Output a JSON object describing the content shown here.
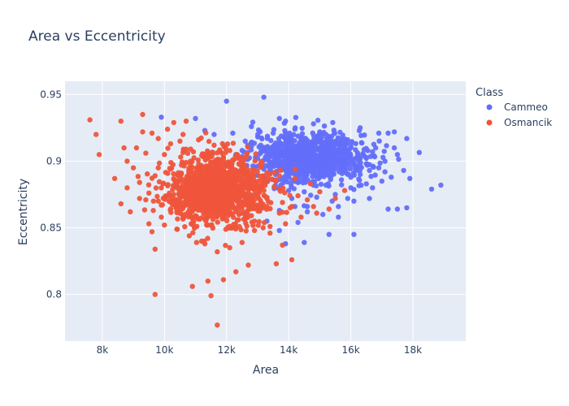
{
  "chart_data": {
    "type": "scatter",
    "title": "Area vs Eccentricity",
    "xlabel": "Area",
    "ylabel": "Eccentricity",
    "xlim": [
      6800,
      19700
    ],
    "ylim": [
      0.765,
      0.96
    ],
    "x_ticks": [
      8000,
      10000,
      12000,
      14000,
      16000,
      18000
    ],
    "x_tick_labels": [
      "8k",
      "10k",
      "12k",
      "14k",
      "16k",
      "18k"
    ],
    "y_ticks": [
      0.8,
      0.85,
      0.9,
      0.95
    ],
    "y_tick_labels": [
      "0.8",
      "0.85",
      "0.9",
      "0.95"
    ],
    "grid": true,
    "legend": {
      "title": "Class",
      "position": "right"
    },
    "series": [
      {
        "name": "Cammeo",
        "color": "#636efa",
        "points": [
          [
            13200,
            0.948
          ],
          [
            12000,
            0.945
          ],
          [
            9900,
            0.933
          ],
          [
            11000,
            0.932
          ],
          [
            13700,
            0.932
          ],
          [
            14800,
            0.928
          ],
          [
            16300,
            0.925
          ],
          [
            15000,
            0.922
          ],
          [
            17200,
            0.921
          ],
          [
            17400,
            0.922
          ],
          [
            16900,
            0.921
          ],
          [
            17800,
            0.917
          ],
          [
            17400,
            0.91
          ],
          [
            17500,
            0.905
          ],
          [
            17100,
            0.9
          ],
          [
            16700,
            0.907
          ],
          [
            17700,
            0.893
          ],
          [
            17100,
            0.892
          ],
          [
            17300,
            0.888
          ],
          [
            16600,
            0.893
          ],
          [
            17900,
            0.887
          ],
          [
            18600,
            0.879
          ],
          [
            18900,
            0.882
          ],
          [
            17800,
            0.865
          ],
          [
            17200,
            0.864
          ],
          [
            17500,
            0.864
          ],
          [
            16100,
            0.845
          ],
          [
            15900,
            0.872
          ],
          [
            15300,
            0.845
          ],
          [
            15600,
            0.858
          ],
          [
            14600,
            0.862
          ],
          [
            14300,
            0.854
          ],
          [
            13300,
            0.855
          ],
          [
            13700,
            0.848
          ],
          [
            14500,
            0.839
          ],
          [
            13900,
            0.838
          ],
          [
            13700,
            0.863
          ],
          [
            14100,
            0.872
          ],
          [
            16500,
            0.883
          ],
          [
            16300,
            0.896
          ],
          [
            16400,
            0.905
          ],
          [
            15600,
            0.908
          ],
          [
            14200,
            0.924
          ],
          [
            13500,
            0.921
          ],
          [
            13900,
            0.93
          ],
          [
            12800,
            0.926
          ],
          [
            11600,
            0.92
          ],
          [
            11300,
            0.923
          ],
          [
            12200,
            0.921
          ],
          [
            12600,
            0.915
          ],
          [
            13100,
            0.912
          ],
          [
            14000,
            0.91
          ],
          [
            14700,
            0.912
          ],
          [
            15300,
            0.914
          ],
          [
            15900,
            0.916
          ],
          [
            16800,
            0.91
          ],
          [
            15300,
            0.895
          ],
          [
            14400,
            0.891
          ],
          [
            13400,
            0.892
          ],
          [
            13000,
            0.902
          ],
          [
            12500,
            0.908
          ],
          [
            14800,
            0.882
          ],
          [
            15500,
            0.875
          ],
          [
            14600,
            0.866
          ],
          [
            14000,
            0.878
          ],
          [
            15000,
            0.888
          ],
          [
            16000,
            0.888
          ],
          [
            16700,
            0.88
          ],
          [
            13600,
            0.885
          ],
          [
            13900,
            0.897
          ],
          [
            14300,
            0.904
          ],
          [
            14700,
            0.898
          ],
          [
            15100,
            0.902
          ],
          [
            15500,
            0.907
          ],
          [
            14100,
            0.915
          ],
          [
            14800,
            0.909
          ],
          [
            13700,
            0.908
          ],
          [
            14400,
            0.918
          ],
          [
            15200,
            0.92
          ],
          [
            15800,
            0.911
          ],
          [
            16200,
            0.903
          ],
          [
            15700,
            0.894
          ],
          [
            15200,
            0.882
          ],
          [
            14200,
            0.866
          ],
          [
            14500,
            0.877
          ],
          [
            13900,
            0.889
          ],
          [
            13500,
            0.899
          ],
          [
            13200,
            0.894
          ],
          [
            12900,
            0.889
          ],
          [
            13300,
            0.905
          ],
          [
            13700,
            0.914
          ],
          [
            14000,
            0.903
          ],
          [
            14200,
            0.896
          ],
          [
            14600,
            0.906
          ],
          [
            14900,
            0.895
          ],
          [
            15400,
            0.898
          ],
          [
            15900,
            0.903
          ],
          [
            16500,
            0.898
          ],
          [
            16000,
            0.88
          ],
          [
            15400,
            0.87
          ],
          [
            14900,
            0.873
          ],
          [
            14300,
            0.884
          ],
          [
            14600,
            0.892
          ],
          [
            15100,
            0.91
          ],
          [
            15600,
            0.916
          ],
          [
            14500,
            0.913
          ],
          [
            14000,
            0.892
          ],
          [
            13600,
            0.902
          ],
          [
            13100,
            0.897
          ],
          [
            12600,
            0.897
          ],
          [
            12300,
            0.905
          ],
          [
            12800,
            0.911
          ],
          [
            13500,
            0.911
          ],
          [
            13800,
            0.895
          ],
          [
            14400,
            0.908
          ],
          [
            14900,
            0.904
          ],
          [
            15200,
            0.89
          ],
          [
            15700,
            0.886
          ],
          [
            16300,
            0.89
          ],
          [
            16900,
            0.895
          ],
          [
            17000,
            0.885
          ],
          [
            16600,
            0.872
          ],
          [
            16100,
            0.87
          ],
          [
            15600,
            0.866
          ],
          [
            15100,
            0.86
          ],
          [
            14700,
            0.884
          ]
        ]
      },
      {
        "name": "Osmancik",
        "color": "#ef553b",
        "points": [
          [
            7600,
            0.931
          ],
          [
            7900,
            0.905
          ],
          [
            7800,
            0.92
          ],
          [
            8600,
            0.93
          ],
          [
            9300,
            0.935
          ],
          [
            10300,
            0.929
          ],
          [
            10700,
            0.93
          ],
          [
            8700,
            0.91
          ],
          [
            8400,
            0.887
          ],
          [
            8800,
            0.88
          ],
          [
            8900,
            0.862
          ],
          [
            8600,
            0.868
          ],
          [
            9400,
            0.906
          ],
          [
            9000,
            0.895
          ],
          [
            9200,
            0.872
          ],
          [
            9500,
            0.853
          ],
          [
            9600,
            0.847
          ],
          [
            9700,
            0.834
          ],
          [
            9700,
            0.8
          ],
          [
            10900,
            0.806
          ],
          [
            11500,
            0.799
          ],
          [
            11700,
            0.777
          ],
          [
            11400,
            0.81
          ],
          [
            11900,
            0.811
          ],
          [
            12300,
            0.817
          ],
          [
            12700,
            0.822
          ],
          [
            13600,
            0.823
          ],
          [
            14100,
            0.826
          ],
          [
            13800,
            0.837
          ],
          [
            13400,
            0.846
          ],
          [
            12900,
            0.848
          ],
          [
            12500,
            0.839
          ],
          [
            12100,
            0.835
          ],
          [
            11700,
            0.832
          ],
          [
            11300,
            0.838
          ],
          [
            10800,
            0.844
          ],
          [
            10400,
            0.849
          ],
          [
            10000,
            0.852
          ],
          [
            9900,
            0.858
          ],
          [
            10200,
            0.864
          ],
          [
            10500,
            0.87
          ],
          [
            10900,
            0.876
          ],
          [
            11300,
            0.881
          ],
          [
            11700,
            0.886
          ],
          [
            12100,
            0.882
          ],
          [
            12500,
            0.877
          ],
          [
            12900,
            0.871
          ],
          [
            13300,
            0.866
          ],
          [
            13700,
            0.861
          ],
          [
            14100,
            0.866
          ],
          [
            14600,
            0.871
          ],
          [
            15000,
            0.877
          ],
          [
            14700,
            0.883
          ],
          [
            14200,
            0.887
          ],
          [
            13700,
            0.879
          ],
          [
            13200,
            0.884
          ],
          [
            12700,
            0.889
          ],
          [
            12200,
            0.894
          ],
          [
            11700,
            0.899
          ],
          [
            11200,
            0.904
          ],
          [
            10700,
            0.909
          ],
          [
            10200,
            0.913
          ],
          [
            9800,
            0.917
          ],
          [
            9600,
            0.921
          ],
          [
            10100,
            0.924
          ],
          [
            10600,
            0.92
          ],
          [
            11100,
            0.916
          ],
          [
            11600,
            0.912
          ],
          [
            12100,
            0.908
          ],
          [
            12600,
            0.903
          ],
          [
            13100,
            0.898
          ],
          [
            12900,
            0.893
          ],
          [
            12400,
            0.898
          ],
          [
            11900,
            0.903
          ],
          [
            11400,
            0.895
          ],
          [
            10900,
            0.89
          ],
          [
            10400,
            0.885
          ],
          [
            9900,
            0.88
          ],
          [
            9500,
            0.876
          ],
          [
            9800,
            0.87
          ],
          [
            10300,
            0.875
          ],
          [
            10800,
            0.88
          ],
          [
            11300,
            0.874
          ],
          [
            11800,
            0.869
          ],
          [
            12300,
            0.864
          ],
          [
            12800,
            0.859
          ],
          [
            13300,
            0.872
          ],
          [
            13800,
            0.869
          ],
          [
            14300,
            0.874
          ],
          [
            14800,
            0.866
          ],
          [
            14400,
            0.858
          ],
          [
            13900,
            0.853
          ],
          [
            13400,
            0.851
          ],
          [
            12900,
            0.855
          ],
          [
            12400,
            0.86
          ],
          [
            11900,
            0.857
          ],
          [
            11400,
            0.852
          ],
          [
            10900,
            0.857
          ],
          [
            10400,
            0.862
          ],
          [
            9900,
            0.867
          ],
          [
            9400,
            0.871
          ],
          [
            9200,
            0.884
          ],
          [
            9700,
            0.889
          ],
          [
            10200,
            0.894
          ],
          [
            10700,
            0.899
          ],
          [
            11200,
            0.894
          ],
          [
            11700,
            0.889
          ],
          [
            12200,
            0.873
          ],
          [
            12700,
            0.868
          ],
          [
            13200,
            0.878
          ],
          [
            13700,
            0.889
          ],
          [
            14200,
            0.894
          ],
          [
            14900,
            0.861
          ],
          [
            15300,
            0.864
          ],
          [
            15500,
            0.872
          ],
          [
            15800,
            0.878
          ],
          [
            11000,
            0.866
          ],
          [
            11500,
            0.862
          ],
          [
            12000,
            0.878
          ],
          [
            12500,
            0.884
          ],
          [
            11100,
            0.886
          ],
          [
            11600,
            0.876
          ],
          [
            12100,
            0.87
          ],
          [
            11800,
            0.89
          ],
          [
            11300,
            0.868
          ],
          [
            10800,
            0.872
          ],
          [
            12300,
            0.888
          ],
          [
            12800,
            0.88
          ],
          [
            11900,
            0.876
          ],
          [
            11400,
            0.882
          ],
          [
            10600,
            0.878
          ],
          [
            12600,
            0.874
          ],
          [
            11200,
            0.876
          ],
          [
            11700,
            0.872
          ],
          [
            12000,
            0.884
          ],
          [
            11500,
            0.888
          ],
          [
            11000,
            0.882
          ],
          [
            12400,
            0.868
          ],
          [
            9800,
            0.895
          ],
          [
            9100,
            0.91
          ],
          [
            8800,
            0.9
          ],
          [
            10500,
            0.915
          ],
          [
            9300,
            0.922
          ],
          [
            10000,
            0.905
          ]
        ]
      }
    ]
  }
}
